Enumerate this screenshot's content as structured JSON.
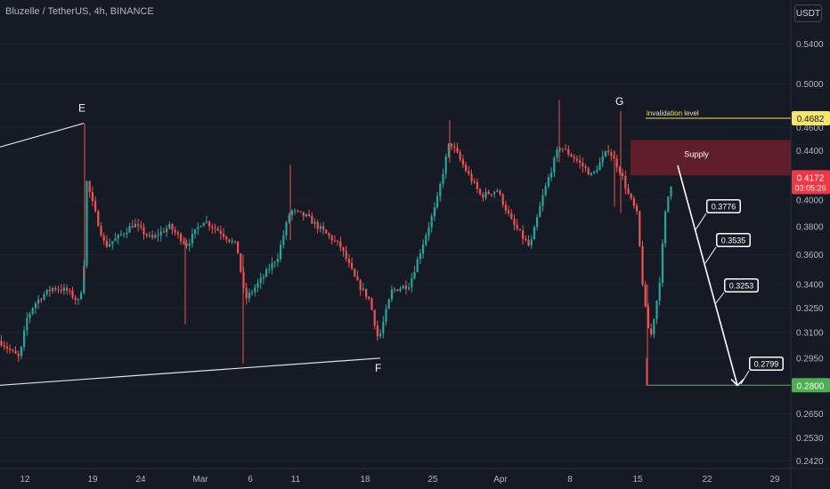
{
  "header": {
    "title": "Bluzelle / TetherUS, 4h, BINANCE",
    "currency_button": "USDT"
  },
  "colors": {
    "background": "#161a25",
    "up": "#26a69a",
    "down": "#ef5350",
    "supply": "#7a1f2c",
    "invalidation": "#f5e663",
    "target": "#4caf50",
    "price_badge": "#f23645"
  },
  "chart_data": {
    "type": "candlestick",
    "symbol": "Bluzelle / TetherUS",
    "interval": "4h",
    "exchange": "BINANCE",
    "y_axis": {
      "scale": "log",
      "ylim": [
        0.2385,
        0.576
      ],
      "ticks": [
        "0.5400",
        "0.5000",
        "0.4600",
        "0.4400",
        "0.4000",
        "0.3800",
        "0.3600",
        "0.3400",
        "0.3250",
        "0.3100",
        "0.2950",
        "0.2800",
        "0.2650",
        "0.2530",
        "0.2420"
      ]
    },
    "x_axis": {
      "ticks": [
        "12",
        "19",
        "24",
        "Mar",
        "6",
        "11",
        "18",
        "25",
        "Apr",
        "8",
        "15",
        "22",
        "29"
      ]
    },
    "price_path": [
      {
        "t": 0,
        "p": 0.305
      },
      {
        "t": 10,
        "p": 0.3
      },
      {
        "t": 22,
        "p": 0.295
      },
      {
        "t": 30,
        "p": 0.318
      },
      {
        "t": 38,
        "p": 0.327
      },
      {
        "t": 48,
        "p": 0.333
      },
      {
        "t": 60,
        "p": 0.338
      },
      {
        "t": 75,
        "p": 0.336
      },
      {
        "t": 88,
        "p": 0.329
      },
      {
        "t": 94,
        "p": 0.343
      },
      {
        "t": 96,
        "p": 0.418
      },
      {
        "t": 106,
        "p": 0.392
      },
      {
        "t": 118,
        "p": 0.366
      },
      {
        "t": 132,
        "p": 0.372
      },
      {
        "t": 150,
        "p": 0.382
      },
      {
        "t": 170,
        "p": 0.371
      },
      {
        "t": 190,
        "p": 0.38
      },
      {
        "t": 210,
        "p": 0.367
      },
      {
        "t": 228,
        "p": 0.385
      },
      {
        "t": 248,
        "p": 0.376
      },
      {
        "t": 266,
        "p": 0.366
      },
      {
        "t": 275,
        "p": 0.33
      },
      {
        "t": 292,
        "p": 0.342
      },
      {
        "t": 312,
        "p": 0.359
      },
      {
        "t": 326,
        "p": 0.392
      },
      {
        "t": 345,
        "p": 0.387
      },
      {
        "t": 362,
        "p": 0.377
      },
      {
        "t": 382,
        "p": 0.366
      },
      {
        "t": 400,
        "p": 0.342
      },
      {
        "t": 415,
        "p": 0.33
      },
      {
        "t": 425,
        "p": 0.305
      },
      {
        "t": 440,
        "p": 0.336
      },
      {
        "t": 460,
        "p": 0.34
      },
      {
        "t": 475,
        "p": 0.368
      },
      {
        "t": 490,
        "p": 0.397
      },
      {
        "t": 505,
        "p": 0.448
      },
      {
        "t": 522,
        "p": 0.425
      },
      {
        "t": 540,
        "p": 0.403
      },
      {
        "t": 558,
        "p": 0.408
      },
      {
        "t": 575,
        "p": 0.383
      },
      {
        "t": 595,
        "p": 0.365
      },
      {
        "t": 610,
        "p": 0.404
      },
      {
        "t": 628,
        "p": 0.444
      },
      {
        "t": 646,
        "p": 0.433
      },
      {
        "t": 665,
        "p": 0.419
      },
      {
        "t": 683,
        "p": 0.441
      },
      {
        "t": 697,
        "p": 0.422
      },
      {
        "t": 705,
        "p": 0.405
      },
      {
        "t": 715,
        "p": 0.39
      },
      {
        "t": 723,
        "p": 0.33
      },
      {
        "t": 730,
        "p": 0.305
      },
      {
        "t": 740,
        "p": 0.338
      },
      {
        "t": 748,
        "p": 0.396
      },
      {
        "t": 755,
        "p": 0.417
      }
    ],
    "points": [
      {
        "label": "E",
        "price": 0.4637
      },
      {
        "label": "F",
        "price": 0.295
      },
      {
        "label": "G",
        "price": 0.47
      }
    ],
    "trendlines": [
      {
        "name": "upper",
        "from": {
          "x_frac": 0.0,
          "price": 0.443
        },
        "to_label": "E"
      },
      {
        "name": "lower",
        "from": {
          "x_frac": 0.0,
          "price": 0.28
        },
        "to_label": "F"
      }
    ],
    "zones": [
      {
        "label": "Supply",
        "price_top": 0.449,
        "price_bottom": 0.4195
      }
    ],
    "levels": [
      {
        "label": "invalidation level",
        "price": 0.4682,
        "axis_label": "0.4682"
      },
      {
        "label": "target",
        "price": 0.28,
        "axis_label": "0.2800"
      }
    ],
    "projection": {
      "from_price": 0.4195,
      "to_price": 0.2799,
      "labels": [
        "0.3776",
        "0.3535",
        "0.3253",
        "0.2799"
      ]
    },
    "current_price": {
      "value": "0.4172",
      "countdown": "03:05:26"
    }
  }
}
